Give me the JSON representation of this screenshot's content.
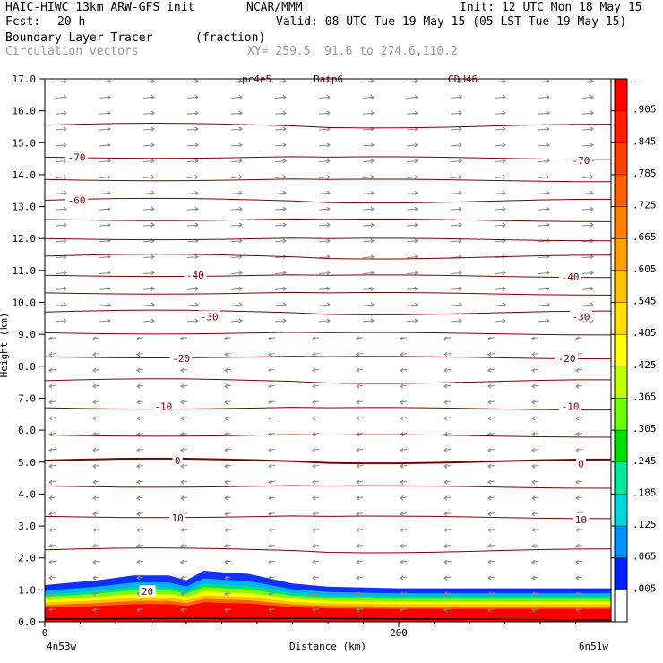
{
  "header": {
    "model": "HAIC-HIWC 13km ARW-GFS init",
    "org": "NCAR/MMM",
    "init": "Init: 12 UTC Mon 18 May 15",
    "fcst_label": "Fcst:",
    "fcst_value": "20 h",
    "valid": "Valid: 08 UTC Tue 19 May 15 (05 LST Tue 19 May 15)",
    "field": "Boundary Layer Tracer",
    "field_units": "(fraction)",
    "vectors": "Circulation vectors",
    "xy": "XY= 259.5, 91.6 to 274.6,110.2"
  },
  "chart_data": {
    "type": "heatmap",
    "ylabel": "Height (km)",
    "xlabel": "Distance (km)",
    "ylim": [
      0,
      17
    ],
    "xlim": [
      0,
      320
    ],
    "y_ticks": [
      "0.0",
      "1.0",
      "2.0",
      "3.0",
      "4.0",
      "5.0",
      "6.0",
      "7.0",
      "8.0",
      "9.0",
      "10.0",
      "11.0",
      "12.0",
      "13.0",
      "14.0",
      "15.0",
      "16.0",
      "17.0"
    ],
    "x_ticks": [
      {
        "value": 0,
        "label": "0"
      },
      {
        "value": 200,
        "label": "200"
      }
    ],
    "x_end_labels": {
      "left": "4n53w",
      "right": "6n51w"
    },
    "top_labels": [
      "pc4e5",
      "Batp6",
      "CDH46"
    ],
    "colorbar": {
      "top_label": "–",
      "labels": [
        ".905",
        ".845",
        ".785",
        ".725",
        ".665",
        ".605",
        ".545",
        ".485",
        ".425",
        ".365",
        ".305",
        ".245",
        ".185",
        ".125",
        ".065",
        ".005"
      ],
      "colors": [
        "#ff0000",
        "#ff2000",
        "#ff4000",
        "#ff6000",
        "#ff8000",
        "#ffa000",
        "#ffc000",
        "#ffe000",
        "#ffff00",
        "#c0ff00",
        "#70ff00",
        "#00e000",
        "#00e8a0",
        "#00d8e0",
        "#0090ff",
        "#0020ff",
        "#ffffff"
      ]
    },
    "tracer_surface": {
      "x": [
        0,
        30,
        50,
        70,
        80,
        90,
        100,
        115,
        140,
        160,
        200,
        250,
        300,
        320
      ],
      "top_km": [
        1.15,
        1.3,
        1.45,
        1.45,
        1.3,
        1.6,
        1.55,
        1.5,
        1.2,
        1.1,
        1.05,
        1.05,
        1.05,
        1.05
      ]
    },
    "temperature_labels": [
      {
        "text": "-70",
        "x": 18,
        "y": 14.55
      },
      {
        "text": "-70",
        "x": 303,
        "y": 14.45
      },
      {
        "text": "-60",
        "x": 18,
        "y": 13.2
      },
      {
        "text": "-40",
        "x": 85,
        "y": 10.85
      },
      {
        "text": "-40",
        "x": 297,
        "y": 10.8
      },
      {
        "text": "-30",
        "x": 93,
        "y": 9.55
      },
      {
        "text": "-30",
        "x": 303,
        "y": 9.55
      },
      {
        "text": "-20",
        "x": 77,
        "y": 8.25
      },
      {
        "text": "-20",
        "x": 295,
        "y": 8.25
      },
      {
        "text": "-10",
        "x": 67,
        "y": 6.75
      },
      {
        "text": "-10",
        "x": 297,
        "y": 6.75
      },
      {
        "text": "0",
        "x": 75,
        "y": 5.05
      },
      {
        "text": "0",
        "x": 303,
        "y": 4.95
      },
      {
        "text": "10",
        "x": 75,
        "y": 3.25
      },
      {
        "text": "10",
        "x": 303,
        "y": 3.2
      },
      {
        "text": "20",
        "x": 58,
        "y": 0.95
      }
    ],
    "isotherm_heights_km": [
      2.25,
      3.3,
      4.25,
      5.05,
      5.85,
      6.7,
      7.55,
      8.3,
      9.05,
      9.7,
      10.3,
      10.85,
      11.45,
      12.0,
      12.6,
      13.2,
      13.85,
      14.55,
      15.55
    ]
  }
}
